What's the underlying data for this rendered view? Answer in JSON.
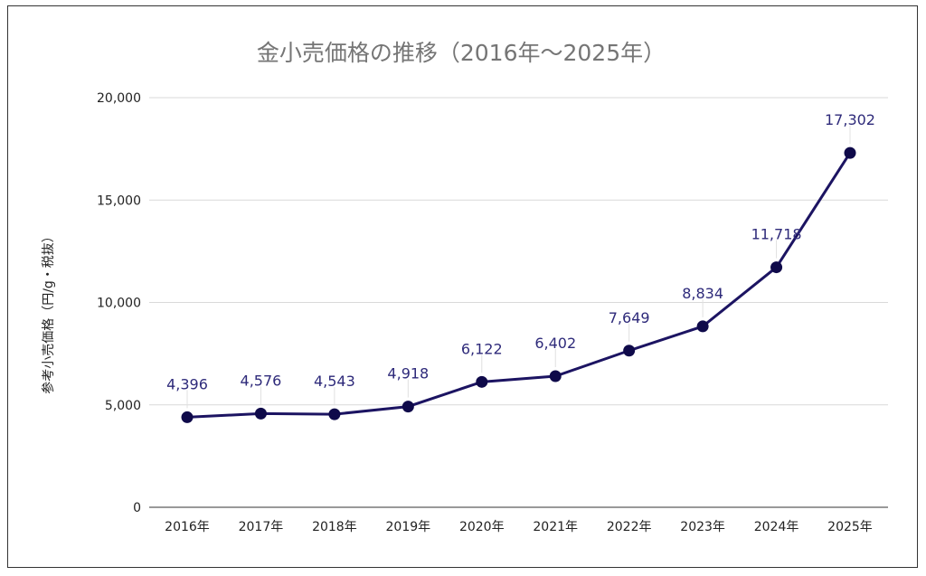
{
  "chart_data": {
    "type": "line",
    "title": "金小売価格の推移（2016年～2025年）",
    "xlabel": "",
    "ylabel": "参考小売価格（円/g・税抜）",
    "categories": [
      "2016年",
      "2017年",
      "2018年",
      "2019年",
      "2020年",
      "2021年",
      "2022年",
      "2023年",
      "2024年",
      "2025年"
    ],
    "values": [
      4396,
      4576,
      4543,
      4918,
      6122,
      6402,
      7649,
      8834,
      11718,
      17302
    ],
    "data_labels": [
      "4,396",
      "4,576",
      "4,543",
      "4,918",
      "6,122",
      "6,402",
      "7,649",
      "8,834",
      "11,718",
      "17,302"
    ],
    "ylim": [
      0,
      20000
    ],
    "yticks": [
      "0",
      "5,000",
      "10,000",
      "15,000",
      "20,000"
    ],
    "ytick_values": [
      0,
      5000,
      10000,
      15000,
      20000
    ],
    "grid": true,
    "legend": "none",
    "colors": {
      "line": "#1c1462",
      "marker": "#0f0a4a",
      "label": "#2e2a7a",
      "title": "#757575",
      "grid": "#d9d9d9"
    }
  }
}
